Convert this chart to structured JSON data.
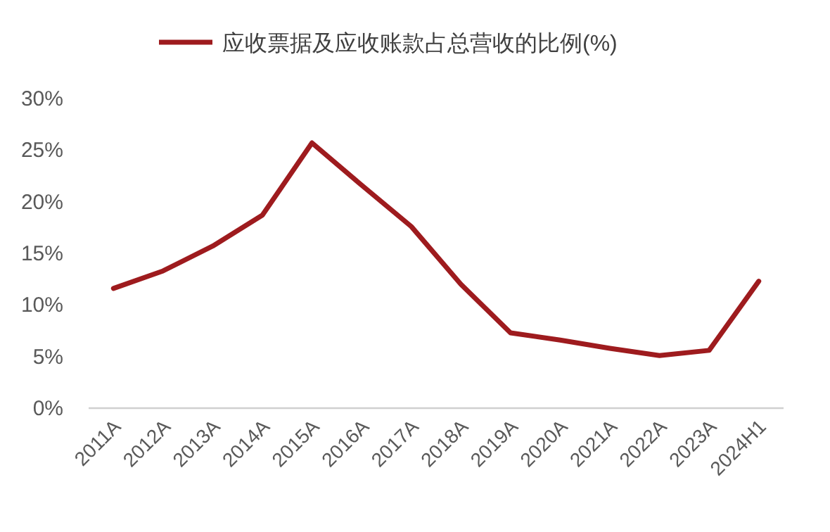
{
  "chart_data": {
    "type": "line",
    "categories": [
      "2011A",
      "2012A",
      "2013A",
      "2014A",
      "2015A",
      "2016A",
      "2017A",
      "2018A",
      "2019A",
      "2020A",
      "2021A",
      "2022A",
      "2023A",
      "2024H1"
    ],
    "series": [
      {
        "name": "应收票据及应收账款占总营收的比例(%)",
        "color": "#9e1b1e",
        "values": [
          11.6,
          13.3,
          15.7,
          18.7,
          25.7,
          21.6,
          17.6,
          12.0,
          7.3,
          6.6,
          5.8,
          5.1,
          5.6,
          12.3
        ]
      }
    ],
    "ylim": [
      0,
      30
    ],
    "yticks": [
      {
        "value": 0,
        "label": "0%"
      },
      {
        "value": 5,
        "label": "5%"
      },
      {
        "value": 10,
        "label": "10%"
      },
      {
        "value": 15,
        "label": "15%"
      },
      {
        "value": 20,
        "label": "20%"
      },
      {
        "value": 25,
        "label": "25%"
      },
      {
        "value": 30,
        "label": "30%"
      }
    ],
    "grid": false,
    "legend": "top",
    "marker": "none",
    "line_style": "solid"
  }
}
